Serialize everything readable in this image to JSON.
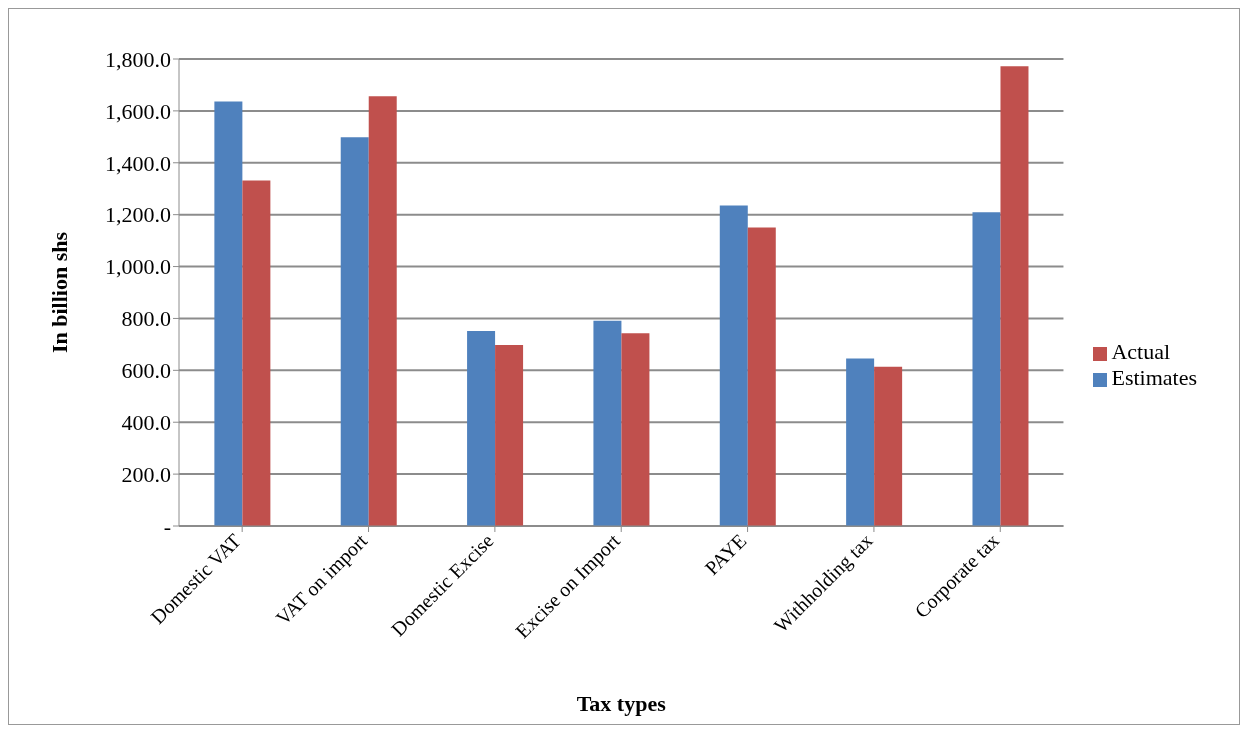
{
  "chart_data": {
    "type": "bar",
    "xlabel": "Tax types",
    "ylabel": "In billion shs",
    "categories": [
      "Domestic VAT",
      "VAT on import",
      "Domestic Excise",
      "Excise on Import",
      "PAYE",
      "Withholding tax",
      "Corporate tax"
    ],
    "series": [
      {
        "name": "Estimates",
        "color": "#4f81bd",
        "values": [
          1636,
          1498,
          752,
          791,
          1235,
          646,
          1209
        ]
      },
      {
        "name": "Actual",
        "color": "#c0504d",
        "values": [
          1332,
          1656,
          698,
          743,
          1151,
          614,
          1772
        ]
      }
    ],
    "ylim": [
      0,
      1800
    ],
    "yticks": [
      {
        "value": 0,
        "label": "-"
      },
      {
        "value": 200,
        "label": "200.0"
      },
      {
        "value": 400,
        "label": "400.0"
      },
      {
        "value": 600,
        "label": "600.0"
      },
      {
        "value": 800,
        "label": "800.0"
      },
      {
        "value": 1000,
        "label": "1,000.0"
      },
      {
        "value": 1200,
        "label": "1,200.0"
      },
      {
        "value": 1400,
        "label": "1,400.0"
      },
      {
        "value": 1600,
        "label": "1,600.0"
      },
      {
        "value": 1800,
        "label": "1,800.0"
      }
    ],
    "grid": "y",
    "legend": "right"
  }
}
